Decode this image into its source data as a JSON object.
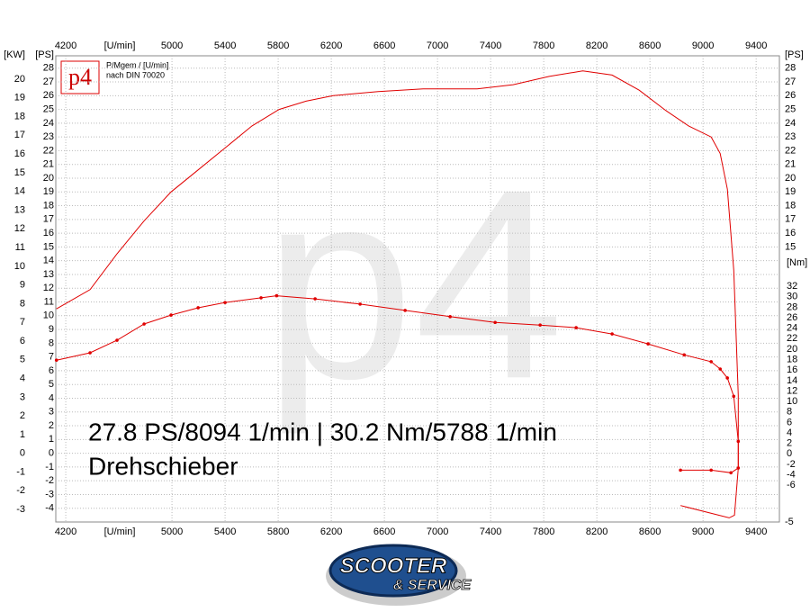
{
  "chart_data": {
    "type": "line",
    "xlabel": "[U/min]",
    "ylabel": "[PS]",
    "y2label": "[Nm]",
    "y3label": "[KW]",
    "xlim": [
      4125,
      9575
    ],
    "xticks": [
      4200,
      5000,
      5400,
      5800,
      6200,
      6600,
      7000,
      7400,
      7800,
      8200,
      8600,
      9000,
      9400
    ],
    "ylim": [
      -5,
      28.9
    ],
    "yticks": [
      28,
      27,
      26,
      25,
      24,
      23,
      22,
      21,
      20,
      19,
      18,
      17,
      16,
      15,
      14,
      13,
      12,
      11,
      10,
      9,
      8,
      7,
      6,
      5,
      4,
      3,
      2,
      1,
      0,
      -1,
      -2,
      -3,
      -4
    ],
    "right_yticks": [
      28,
      27,
      26,
      25,
      24,
      23,
      22,
      21,
      20,
      19,
      18,
      17,
      16,
      15,
      -5
    ],
    "y2lim": [
      -13,
      76
    ],
    "y2ticks": [
      32,
      30,
      28,
      26,
      24,
      22,
      20,
      18,
      16,
      14,
      12,
      10,
      8,
      6,
      4,
      2,
      0,
      -2,
      -4,
      -6
    ],
    "y3lim": [
      -3.67,
      21.25
    ],
    "y3ticks": [
      20,
      19,
      18,
      17,
      16,
      15,
      14,
      13,
      12,
      11,
      10,
      9,
      8,
      7,
      6,
      5,
      4,
      3,
      2,
      1,
      0,
      -1,
      -2,
      -3
    ],
    "grid": true,
    "logo": "p4",
    "legend_lines": [
      "P/Mgem / [U/min]",
      "nach DIN 70020"
    ],
    "watermark": "p4",
    "annotation": "27.8 PS/8094 1/min | 30.2 Nm/5788 1/min",
    "subtitle": "Drehschieber",
    "brand": [
      "SCOOTER",
      "& SERVICE"
    ],
    "series": [
      {
        "name": "P",
        "color": "#e00000",
        "axis": "y",
        "marker": false,
        "x": [
          4130,
          4383,
          4586,
          4790,
          4993,
          5197,
          5400,
          5603,
          5807,
          6010,
          6214,
          6553,
          6892,
          7298,
          7570,
          7841,
          8094,
          8315,
          8519,
          8722,
          8891,
          9061,
          9129,
          9183,
          9231,
          9265,
          9265,
          9237,
          9197,
          8830
        ],
        "values": [
          10.5,
          11.9,
          14.5,
          16.9,
          19.0,
          20.6,
          22.2,
          23.8,
          25.0,
          25.6,
          26.0,
          26.3,
          26.5,
          26.5,
          26.8,
          27.4,
          27.8,
          27.5,
          26.4,
          24.9,
          23.8,
          23.0,
          21.8,
          19.2,
          13.3,
          4.2,
          -1.1,
          -4.5,
          -4.7,
          -3.8
        ]
      },
      {
        "name": "Mgem",
        "color": "#e00000",
        "axis": "y2",
        "marker": true,
        "x": [
          4130,
          4383,
          4586,
          4790,
          4993,
          5197,
          5400,
          5671,
          5788,
          6078,
          6417,
          6756,
          7095,
          7434,
          7773,
          8044,
          8315,
          8586,
          8858,
          9061,
          9129,
          9183,
          9231,
          9265,
          9265,
          9210,
          9061,
          8830
        ],
        "values": [
          17.9,
          19.3,
          21.7,
          24.8,
          26.5,
          27.9,
          28.9,
          29.8,
          30.2,
          29.6,
          28.6,
          27.4,
          26.2,
          25.1,
          24.6,
          24.1,
          22.9,
          21.0,
          18.9,
          17.6,
          16.2,
          14.5,
          11.0,
          2.4,
          -2.7,
          -3.6,
          -3.1,
          -3.1
        ]
      }
    ]
  }
}
